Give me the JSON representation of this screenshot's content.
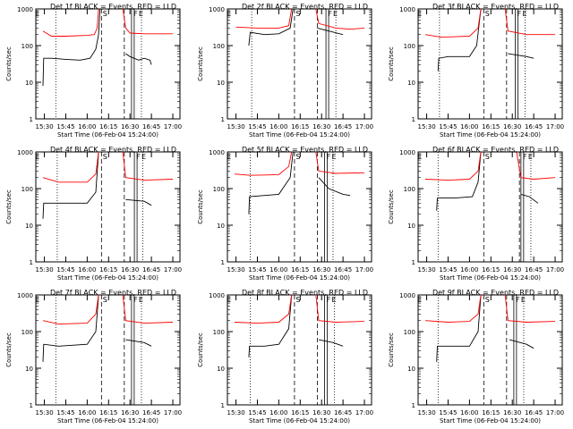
{
  "chart_data": [
    {
      "type": "line",
      "title": "Det 1f BLACK = Events, RED = LLD",
      "xlabel": "Start Time (06-Feb-04 15:24:00)",
      "ylabel": "Counts/sec",
      "x_ticks": [
        "15:30",
        "15:45",
        "16:00",
        "16:15",
        "16:30",
        "16:45",
        "17:00"
      ],
      "y_ticks": [
        "1",
        "10",
        "100",
        "1000"
      ],
      "yscale": "log",
      "ylim": [
        1,
        1000
      ],
      "markers": [
        "E",
        "S",
        "F",
        "E"
      ],
      "series": [
        {
          "color": "#000000",
          "points": [
            [
              "15:29",
              8
            ],
            [
              "15:29.5",
              45
            ],
            [
              "15:35",
              45
            ],
            [
              "15:45",
              42
            ],
            [
              "15:55",
              40
            ],
            [
              "16:02",
              45
            ],
            [
              "16:06",
              80
            ],
            [
              "16:08",
              200
            ],
            [
              "16:09",
              1000
            ]
          ],
          "segment2": [
            [
              "16:27",
              60
            ],
            [
              "16:30",
              50
            ],
            [
              "16:36",
              40
            ],
            [
              "16:40",
              45
            ],
            [
              "16:44",
              40
            ],
            [
              "16:45",
              30
            ]
          ]
        },
        {
          "color": "#ff0000",
          "points": [
            [
              "15:29",
              250
            ],
            [
              "15:35",
              180
            ],
            [
              "15:45",
              180
            ],
            [
              "16:00",
              190
            ],
            [
              "16:05",
              200
            ],
            [
              "16:07",
              300
            ],
            [
              "16:08",
              1000
            ]
          ],
          "segment2": [
            [
              "16:25",
              1000
            ],
            [
              "16:27",
              300
            ],
            [
              "16:30",
              220
            ],
            [
              "16:40",
              210
            ],
            [
              "17:00",
              210
            ]
          ]
        }
      ]
    },
    {
      "type": "line",
      "title": "Det 2f BLACK = Events, RED = LLD",
      "xlabel": "Start Time (06-Feb-04 15:24:00)",
      "ylabel": "Counts/sec",
      "x_ticks": [
        "15:30",
        "15:45",
        "16:00",
        "16:15",
        "16:30",
        "16:45",
        "17:00"
      ],
      "y_ticks": [
        "1",
        "10",
        "100",
        "1000"
      ],
      "yscale": "log",
      "ylim": [
        1,
        1000
      ],
      "markers": [
        "E",
        "S",
        "F",
        "E"
      ],
      "series": [
        {
          "color": "#000000",
          "points": [
            [
              "15:39",
              100
            ],
            [
              "15:40",
              230
            ],
            [
              "15:50",
              200
            ],
            [
              "16:00",
              210
            ],
            [
              "16:08",
              300
            ],
            [
              "16:10",
              1000
            ]
          ],
          "segment2": [
            [
              "16:27",
              300
            ],
            [
              "16:35",
              250
            ],
            [
              "16:45",
              200
            ]
          ]
        },
        {
          "color": "#ff0000",
          "points": [
            [
              "15:30",
              320
            ],
            [
              "15:45",
              300
            ],
            [
              "16:00",
              300
            ],
            [
              "16:07",
              350
            ],
            [
              "16:09",
              1000
            ]
          ],
          "segment2": [
            [
              "16:26",
              1000
            ],
            [
              "16:28",
              400
            ],
            [
              "16:40",
              300
            ],
            [
              "16:50",
              280
            ],
            [
              "17:00",
              300
            ]
          ]
        }
      ]
    },
    {
      "type": "line",
      "title": "Det 3f BLACK = Events, RED = LLD",
      "xlabel": "Start Time (06-Feb-04 15:24:00)",
      "ylabel": "Counts/sec",
      "x_ticks": [
        "15:30",
        "15:45",
        "16:00",
        "16:15",
        "16:30",
        "16:45",
        "17:00"
      ],
      "y_ticks": [
        "1",
        "10",
        "100",
        "1000"
      ],
      "yscale": "log",
      "ylim": [
        1,
        1000
      ],
      "markers": [
        "E",
        "S",
        "F",
        "E"
      ],
      "series": [
        {
          "color": "#000000",
          "points": [
            [
              "15:38",
              20
            ],
            [
              "15:38.5",
              45
            ],
            [
              "15:45",
              50
            ],
            [
              "16:00",
              50
            ],
            [
              "16:05",
              100
            ],
            [
              "16:08",
              1000
            ]
          ],
          "segment2": [
            [
              "16:27",
              60
            ],
            [
              "16:40",
              50
            ],
            [
              "16:45",
              45
            ]
          ]
        },
        {
          "color": "#ff0000",
          "points": [
            [
              "15:29",
              200
            ],
            [
              "15:40",
              170
            ],
            [
              "16:00",
              180
            ],
            [
              "16:06",
              300
            ],
            [
              "16:08",
              1000
            ]
          ],
          "segment2": [
            [
              "16:25",
              1000
            ],
            [
              "16:27",
              250
            ],
            [
              "16:40",
              200
            ],
            [
              "17:00",
              200
            ]
          ]
        }
      ]
    },
    {
      "type": "line",
      "title": "Det 4f BLACK = Events, RED = LLD",
      "xlabel": "Start Time (06-Feb-04 15:24:00)",
      "ylabel": "Counts/sec",
      "x_ticks": [
        "15:30",
        "15:45",
        "16:00",
        "16:15",
        "16:30",
        "16:45",
        "17:00"
      ],
      "y_ticks": [
        "1",
        "10",
        "100",
        "1000"
      ],
      "yscale": "log",
      "ylim": [
        1,
        1000
      ],
      "markers": [
        "E",
        "S",
        "F",
        "E"
      ],
      "series": [
        {
          "color": "#000000",
          "points": [
            [
              "15:29",
              15
            ],
            [
              "15:29.5",
              40
            ],
            [
              "15:40",
              40
            ],
            [
              "16:00",
              40
            ],
            [
              "16:06",
              80
            ],
            [
              "16:08",
              1000
            ]
          ],
          "segment2": [
            [
              "16:27",
              50
            ],
            [
              "16:40",
              45
            ],
            [
              "16:45",
              35
            ]
          ]
        },
        {
          "color": "#ff0000",
          "points": [
            [
              "15:29",
              200
            ],
            [
              "15:40",
              150
            ],
            [
              "16:00",
              150
            ],
            [
              "16:06",
              250
            ],
            [
              "16:08",
              1000
            ]
          ],
          "segment2": [
            [
              "16:25",
              1000
            ],
            [
              "16:27",
              200
            ],
            [
              "16:40",
              170
            ],
            [
              "17:00",
              180
            ]
          ]
        }
      ]
    },
    {
      "type": "line",
      "title": "Det 5f BLACK = Events, RED = LLD",
      "xlabel": "Start Time (06-Feb-04 15:24:00)",
      "ylabel": "Counts/sec",
      "x_ticks": [
        "15:30",
        "15:45",
        "16:00",
        "16:15",
        "16:30",
        "16:45",
        "17:00"
      ],
      "y_ticks": [
        "1",
        "10",
        "100",
        "1000"
      ],
      "yscale": "log",
      "ylim": [
        1,
        1000
      ],
      "markers": [
        "E",
        "S",
        "F",
        "E"
      ],
      "series": [
        {
          "color": "#000000",
          "points": [
            [
              "15:39",
              20
            ],
            [
              "15:39.5",
              60
            ],
            [
              "15:50",
              65
            ],
            [
              "16:00",
              70
            ],
            [
              "16:08",
              200
            ],
            [
              "16:10",
              1000
            ]
          ],
          "segment2": [
            [
              "16:28",
              200
            ],
            [
              "16:35",
              100
            ],
            [
              "16:45",
              70
            ],
            [
              "16:50",
              65
            ]
          ]
        },
        {
          "color": "#ff0000",
          "points": [
            [
              "15:29",
              250
            ],
            [
              "15:40",
              230
            ],
            [
              "16:00",
              240
            ],
            [
              "16:07",
              400
            ],
            [
              "16:09",
              1000
            ]
          ],
          "segment2": [
            [
              "16:26",
              1000
            ],
            [
              "16:28",
              300
            ],
            [
              "16:40",
              260
            ],
            [
              "17:00",
              270
            ]
          ]
        }
      ]
    },
    {
      "type": "line",
      "title": "Det 6f BLACK = Events, RED = LLD",
      "xlabel": "Start Time (06-Feb-04 15:24:00)",
      "ylabel": "Counts/sec",
      "x_ticks": [
        "15:30",
        "15:45",
        "16:00",
        "16:15",
        "16:30",
        "16:45",
        "17:00"
      ],
      "y_ticks": [
        "1",
        "10",
        "100",
        "1000"
      ],
      "yscale": "log",
      "ylim": [
        1,
        1000
      ],
      "markers": [
        "E",
        "S",
        "F",
        "E"
      ],
      "series": [
        {
          "color": "#000000",
          "points": [
            [
              "15:37",
              25
            ],
            [
              "15:37.5",
              55
            ],
            [
              "15:50",
              55
            ],
            [
              "16:02",
              60
            ],
            [
              "16:06",
              150
            ],
            [
              "16:08",
              1000
            ]
          ],
          "segment2": [
            [
              "16:36",
              70
            ],
            [
              "16:42",
              60
            ],
            [
              "16:48",
              40
            ]
          ]
        },
        {
          "color": "#ff0000",
          "points": [
            [
              "15:29",
              180
            ],
            [
              "15:45",
              170
            ],
            [
              "16:00",
              180
            ],
            [
              "16:06",
              300
            ],
            [
              "16:08",
              1000
            ]
          ],
          "segment2": [
            [
              "16:33",
              1000
            ],
            [
              "16:36",
              200
            ],
            [
              "16:45",
              180
            ],
            [
              "17:00",
              200
            ]
          ]
        }
      ]
    },
    {
      "type": "line",
      "title": "Det 7f BLACK = Events, RED = LLD",
      "xlabel": "Start Time (06-Feb-04 15:24:00)",
      "ylabel": "Counts/sec",
      "x_ticks": [
        "15:30",
        "15:45",
        "16:00",
        "16:15",
        "16:30",
        "16:45",
        "17:00"
      ],
      "y_ticks": [
        "1",
        "10",
        "100",
        "1000"
      ],
      "yscale": "log",
      "ylim": [
        1,
        1000
      ],
      "markers": [
        "E",
        "S",
        "F",
        "E"
      ],
      "series": [
        {
          "color": "#000000",
          "points": [
            [
              "15:29",
              15
            ],
            [
              "15:29.5",
              45
            ],
            [
              "15:40",
              40
            ],
            [
              "16:00",
              45
            ],
            [
              "16:06",
              100
            ],
            [
              "16:08",
              1000
            ]
          ],
          "segment2": [
            [
              "16:27",
              60
            ],
            [
              "16:40",
              50
            ],
            [
              "16:45",
              40
            ]
          ]
        },
        {
          "color": "#ff0000",
          "points": [
            [
              "15:29",
              200
            ],
            [
              "15:40",
              160
            ],
            [
              "16:00",
              170
            ],
            [
              "16:06",
              300
            ],
            [
              "16:08",
              1000
            ]
          ],
          "segment2": [
            [
              "16:25",
              1000
            ],
            [
              "16:27",
              200
            ],
            [
              "16:40",
              170
            ],
            [
              "17:00",
              180
            ]
          ]
        }
      ]
    },
    {
      "type": "line",
      "title": "Det 8f BLACK = Events, RED = LLD",
      "xlabel": "Start Time (06-Feb-04 15:24:00)",
      "ylabel": "Counts/sec",
      "x_ticks": [
        "15:30",
        "15:45",
        "16:00",
        "16:15",
        "16:30",
        "16:45",
        "17:00"
      ],
      "y_ticks": [
        "1",
        "10",
        "100",
        "1000"
      ],
      "yscale": "log",
      "ylim": [
        1,
        1000
      ],
      "markers": [
        "E",
        "S",
        "F",
        "E"
      ],
      "series": [
        {
          "color": "#000000",
          "points": [
            [
              "15:39",
              20
            ],
            [
              "15:39.5",
              40
            ],
            [
              "15:50",
              40
            ],
            [
              "16:00",
              45
            ],
            [
              "16:07",
              120
            ],
            [
              "16:09",
              1000
            ]
          ],
          "segment2": [
            [
              "16:28",
              60
            ],
            [
              "16:38",
              50
            ],
            [
              "16:45",
              40
            ]
          ]
        },
        {
          "color": "#ff0000",
          "points": [
            [
              "15:29",
              180
            ],
            [
              "15:45",
              170
            ],
            [
              "16:00",
              180
            ],
            [
              "16:07",
              300
            ],
            [
              "16:09",
              1000
            ]
          ],
          "segment2": [
            [
              "16:26",
              1000
            ],
            [
              "16:28",
              200
            ],
            [
              "16:40",
              180
            ],
            [
              "17:00",
              190
            ]
          ]
        }
      ]
    },
    {
      "type": "line",
      "title": "Det 9f BLACK = Events, RED = LLD",
      "xlabel": "Start Time (06-Feb-04 15:24:00)",
      "ylabel": "Counts/sec",
      "x_ticks": [
        "15:30",
        "15:45",
        "16:00",
        "16:15",
        "16:30",
        "16:45",
        "17:00"
      ],
      "y_ticks": [
        "1",
        "10",
        "100",
        "1000"
      ],
      "yscale": "log",
      "ylim": [
        1,
        1000
      ],
      "markers": [
        "E",
        "S",
        "F",
        "E"
      ],
      "series": [
        {
          "color": "#000000",
          "points": [
            [
              "15:37",
              15
            ],
            [
              "15:37.5",
              40
            ],
            [
              "15:50",
              40
            ],
            [
              "16:00",
              40
            ],
            [
              "16:06",
              100
            ],
            [
              "16:08",
              1000
            ]
          ],
          "segment2": [
            [
              "16:28",
              60
            ],
            [
              "16:40",
              45
            ],
            [
              "16:45",
              35
            ]
          ]
        },
        {
          "color": "#ff0000",
          "points": [
            [
              "15:29",
              200
            ],
            [
              "15:45",
              180
            ],
            [
              "16:00",
              190
            ],
            [
              "16:06",
              300
            ],
            [
              "16:08",
              1000
            ]
          ],
          "segment2": [
            [
              "16:25",
              1000
            ],
            [
              "16:27",
              200
            ],
            [
              "16:40",
              180
            ],
            [
              "17:00",
              190
            ]
          ]
        }
      ]
    }
  ]
}
